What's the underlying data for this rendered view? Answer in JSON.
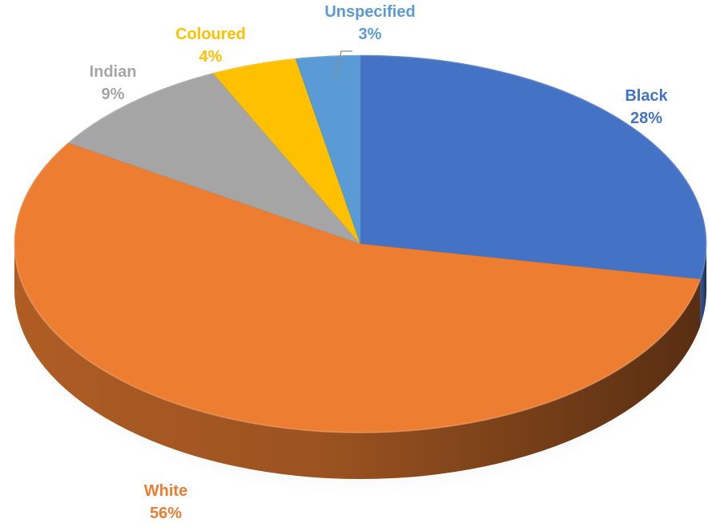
{
  "chart_data": {
    "type": "pie",
    "title": "",
    "slices": [
      {
        "label": "Black",
        "value": 28,
        "value_label": "28%",
        "color": "#4472C4"
      },
      {
        "label": "White",
        "value": 56,
        "value_label": "56%",
        "color": "#ED7D31"
      },
      {
        "label": "Indian",
        "value": 9,
        "value_label": "9%",
        "color": "#A5A5A5"
      },
      {
        "label": "Coloured",
        "value": 4,
        "value_label": "4%",
        "color": "#FFC000"
      },
      {
        "label": "Unspecified",
        "value": 3,
        "value_label": "3%",
        "color": "#5B9BD5"
      }
    ],
    "legend": "none",
    "data_labels": "outside"
  }
}
